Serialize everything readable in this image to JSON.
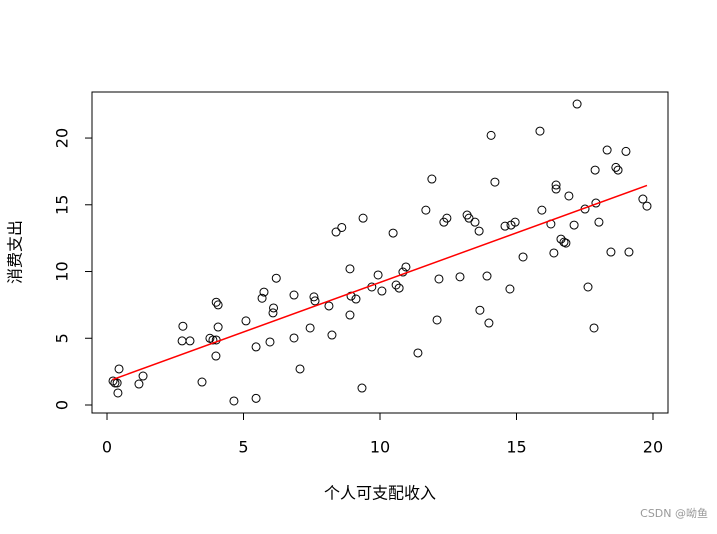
{
  "chart_data": {
    "type": "scatter",
    "xlabel": "个人可支配收入",
    "ylabel": "消费支出",
    "x": [
      0.22,
      0.29,
      0.37,
      0.44,
      0.4,
      1.32,
      1.17,
      2.78,
      2.75,
      3.04,
      3.48,
      3.77,
      3.88,
      4.0,
      4.07,
      4.07,
      3.99,
      4.0,
      4.65,
      5.09,
      5.46,
      5.46,
      5.75,
      5.68,
      5.97,
      6.1,
      6.08,
      6.2,
      6.85,
      6.85,
      7.07,
      7.44,
      7.58,
      7.62,
      8.13,
      8.24,
      8.39,
      8.6,
      8.9,
      8.94,
      8.9,
      9.12,
      9.38,
      9.34,
      9.7,
      9.93,
      10.07,
      10.48,
      10.59,
      10.7,
      10.84,
      10.95,
      11.39,
      11.68,
      11.9,
      12.09,
      12.16,
      12.34,
      12.45,
      12.93,
      13.19,
      13.26,
      13.48,
      13.63,
      13.66,
      13.92,
      13.99,
      14.07,
      14.21,
      14.58,
      14.76,
      14.8,
      14.95,
      15.24,
      15.86,
      15.93,
      16.26,
      16.37,
      16.45,
      16.45,
      16.63,
      16.74,
      16.81,
      16.92,
      17.11,
      17.22,
      17.51,
      17.62,
      17.84,
      17.91,
      17.88,
      18.02,
      18.32,
      18.46,
      18.64,
      18.72,
      19.01,
      19.12,
      19.63,
      19.78
    ],
    "values": [
      1.8,
      1.65,
      1.65,
      2.7,
      0.9,
      2.17,
      1.57,
      5.9,
      4.8,
      4.8,
      1.72,
      5.0,
      4.87,
      7.7,
      7.5,
      5.84,
      3.67,
      4.87,
      0.3,
      6.3,
      4.35,
      0.5,
      8.46,
      8.0,
      4.72,
      7.27,
      6.9,
      9.5,
      8.24,
      5.02,
      2.7,
      5.77,
      8.1,
      7.8,
      7.42,
      5.24,
      12.96,
      13.3,
      10.2,
      8.16,
      6.74,
      7.94,
      14.0,
      1.27,
      8.84,
      9.74,
      8.54,
      12.88,
      8.99,
      8.76,
      9.96,
      10.34,
      3.9,
      14.6,
      16.93,
      6.37,
      9.44,
      13.7,
      14.0,
      9.6,
      14.23,
      14.0,
      13.7,
      13.03,
      7.1,
      9.66,
      6.14,
      20.2,
      16.7,
      13.4,
      8.69,
      13.48,
      13.7,
      11.09,
      20.52,
      14.6,
      13.56,
      11.39,
      16.48,
      16.18,
      12.43,
      12.2,
      12.13,
      15.66,
      13.48,
      22.55,
      14.68,
      8.84,
      5.77,
      15.13,
      17.6,
      13.7,
      19.1,
      11.46,
      17.8,
      17.6,
      19.0,
      11.46,
      15.43,
      14.9
    ],
    "color": "#000000",
    "fit_line": {
      "x": [
        0.2,
        19.78
      ],
      "values": [
        1.9,
        16.45
      ],
      "color": "#ff0000"
    },
    "xlim": [
      -0.55,
      20.55
    ],
    "ylim": [
      -0.6,
      23.45
    ],
    "xticks": [
      0,
      5,
      10,
      15,
      20
    ],
    "yticks": [
      0,
      5,
      10,
      15,
      20
    ],
    "watermark": "CSDN @呦鱼"
  }
}
